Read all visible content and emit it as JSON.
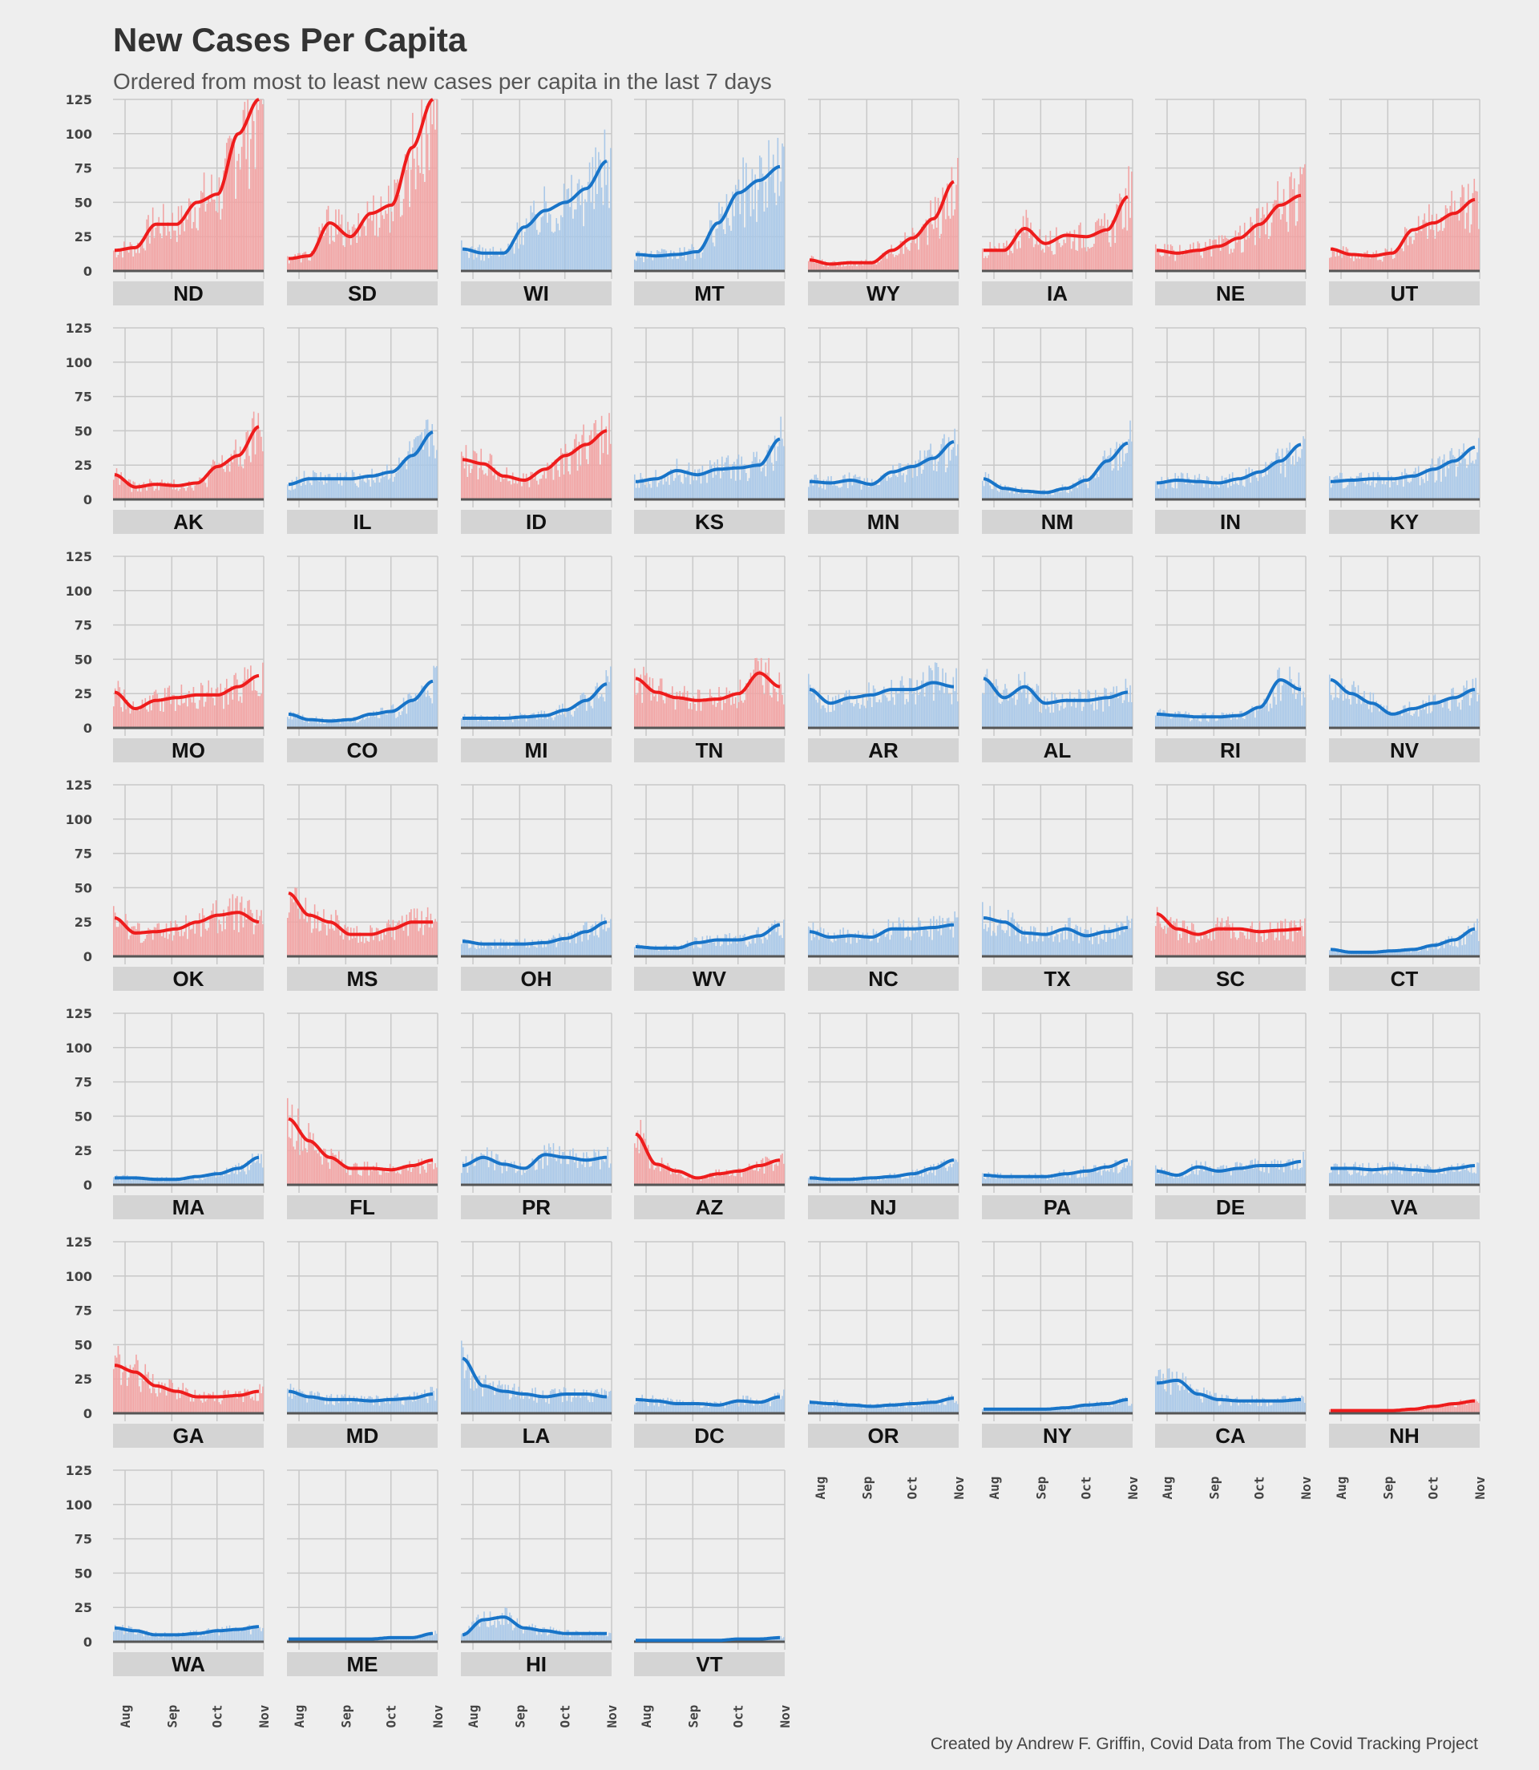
{
  "header": {
    "title": "New Cases Per Capita",
    "subtitle": "Ordered from most to least new cases per capita in the last 7 days"
  },
  "footer": {
    "caption": "Created by Andrew F. Griffin, Covid Data from The Covid Tracking Project"
  },
  "colors": {
    "background": "#eeeeee",
    "grid": "#c8c8c8",
    "strip": "#d4d4d4",
    "baseline": "#555555",
    "red_line": "#ee1c1c",
    "red_bar": "#f2a3a3",
    "blue_line": "#1874c8",
    "blue_bar": "#a9c8e8"
  },
  "chart_data": {
    "type": "line",
    "description_fields": {
      "y_ticks": [
        "0",
        "25",
        "50",
        "75",
        "100",
        "125"
      ],
      "x_ticks": [
        "Aug",
        "Sep",
        "Oct",
        "Nov"
      ]
    },
    "ylim": [
      0,
      125
    ],
    "x_range": [
      "2020-07-24",
      "2020-11-01"
    ],
    "x_ticks": [
      "Aug",
      "Sep",
      "Oct",
      "Nov"
    ],
    "y_ticks": [
      "0",
      "25",
      "50",
      "75",
      "100",
      "125"
    ],
    "grid": true,
    "series_shape": "7-day average line over daily bars",
    "facets": [
      {
        "state": "ND",
        "party": "red",
        "line": [
          15,
          17,
          34,
          34,
          50,
          56,
          100,
          125
        ]
      },
      {
        "state": "SD",
        "party": "red",
        "line": [
          9,
          11,
          35,
          25,
          42,
          48,
          90,
          125
        ]
      },
      {
        "state": "WI",
        "party": "blue",
        "line": [
          16,
          13,
          13,
          32,
          44,
          50,
          60,
          80
        ]
      },
      {
        "state": "MT",
        "party": "blue",
        "line": [
          12,
          11,
          12,
          14,
          35,
          57,
          66,
          76
        ]
      },
      {
        "state": "WY",
        "party": "red",
        "line": [
          8,
          5,
          6,
          6,
          15,
          24,
          38,
          65
        ]
      },
      {
        "state": "IA",
        "party": "red",
        "line": [
          15,
          15,
          31,
          20,
          26,
          25,
          30,
          54
        ]
      },
      {
        "state": "NE",
        "party": "red",
        "line": [
          15,
          13,
          15,
          18,
          24,
          34,
          48,
          55
        ]
      },
      {
        "state": "UT",
        "party": "red",
        "line": [
          16,
          12,
          11,
          13,
          30,
          35,
          42,
          52
        ]
      },
      {
        "state": "AK",
        "party": "red",
        "line": [
          18,
          9,
          11,
          10,
          12,
          24,
          32,
          53
        ]
      },
      {
        "state": "IL",
        "party": "blue",
        "line": [
          11,
          15,
          15,
          15,
          17,
          20,
          32,
          49
        ]
      },
      {
        "state": "ID",
        "party": "red",
        "line": [
          29,
          26,
          17,
          14,
          22,
          32,
          40,
          50
        ]
      },
      {
        "state": "KS",
        "party": "blue",
        "line": [
          13,
          15,
          21,
          18,
          22,
          23,
          25,
          44
        ]
      },
      {
        "state": "MN",
        "party": "blue",
        "line": [
          13,
          12,
          14,
          11,
          20,
          24,
          30,
          42
        ]
      },
      {
        "state": "NM",
        "party": "blue",
        "line": [
          15,
          8,
          6,
          5,
          8,
          14,
          28,
          41
        ]
      },
      {
        "state": "IN",
        "party": "blue",
        "line": [
          12,
          14,
          13,
          12,
          15,
          20,
          28,
          40
        ]
      },
      {
        "state": "KY",
        "party": "blue",
        "line": [
          13,
          14,
          15,
          15,
          17,
          22,
          28,
          38
        ]
      },
      {
        "state": "MO",
        "party": "red",
        "line": [
          26,
          14,
          20,
          22,
          24,
          24,
          30,
          38
        ]
      },
      {
        "state": "CO",
        "party": "blue",
        "line": [
          10,
          6,
          5,
          6,
          10,
          12,
          20,
          34
        ]
      },
      {
        "state": "MI",
        "party": "blue",
        "line": [
          7,
          7,
          7,
          8,
          9,
          13,
          20,
          32
        ]
      },
      {
        "state": "TN",
        "party": "red",
        "line": [
          36,
          26,
          22,
          20,
          21,
          25,
          40,
          30
        ]
      },
      {
        "state": "AR",
        "party": "blue",
        "line": [
          28,
          18,
          22,
          24,
          28,
          28,
          33,
          30
        ]
      },
      {
        "state": "AL",
        "party": "blue",
        "line": [
          36,
          22,
          30,
          18,
          20,
          20,
          22,
          26
        ]
      },
      {
        "state": "RI",
        "party": "blue",
        "line": [
          10,
          9,
          8,
          8,
          9,
          15,
          35,
          28
        ]
      },
      {
        "state": "NV",
        "party": "blue",
        "line": [
          35,
          25,
          18,
          10,
          14,
          18,
          22,
          28
        ]
      },
      {
        "state": "OK",
        "party": "red",
        "line": [
          28,
          17,
          18,
          20,
          25,
          30,
          32,
          25
        ]
      },
      {
        "state": "MS",
        "party": "red",
        "line": [
          46,
          30,
          25,
          16,
          16,
          20,
          25,
          25
        ]
      },
      {
        "state": "OH",
        "party": "blue",
        "line": [
          11,
          9,
          9,
          9,
          10,
          13,
          18,
          25
        ]
      },
      {
        "state": "WV",
        "party": "blue",
        "line": [
          7,
          6,
          6,
          10,
          12,
          12,
          15,
          23
        ]
      },
      {
        "state": "NC",
        "party": "blue",
        "line": [
          18,
          14,
          15,
          14,
          20,
          20,
          21,
          23
        ]
      },
      {
        "state": "TX",
        "party": "blue",
        "line": [
          28,
          25,
          17,
          16,
          20,
          15,
          18,
          21
        ]
      },
      {
        "state": "SC",
        "party": "red",
        "line": [
          31,
          20,
          16,
          20,
          20,
          18,
          19,
          20
        ]
      },
      {
        "state": "CT",
        "party": "blue",
        "line": [
          5,
          3,
          3,
          4,
          5,
          8,
          12,
          20
        ]
      },
      {
        "state": "MA",
        "party": "blue",
        "line": [
          5,
          5,
          4,
          4,
          6,
          8,
          12,
          20
        ]
      },
      {
        "state": "FL",
        "party": "red",
        "line": [
          48,
          32,
          20,
          12,
          12,
          11,
          14,
          18
        ]
      },
      {
        "state": "PR",
        "party": "blue",
        "line": [
          14,
          20,
          15,
          12,
          22,
          20,
          18,
          20
        ]
      },
      {
        "state": "AZ",
        "party": "red",
        "line": [
          37,
          15,
          10,
          5,
          8,
          10,
          14,
          18
        ]
      },
      {
        "state": "NJ",
        "party": "blue",
        "line": [
          5,
          4,
          4,
          5,
          6,
          8,
          12,
          18
        ]
      },
      {
        "state": "PA",
        "party": "blue",
        "line": [
          7,
          6,
          6,
          6,
          8,
          10,
          13,
          18
        ]
      },
      {
        "state": "DE",
        "party": "blue",
        "line": [
          10,
          7,
          13,
          10,
          12,
          14,
          14,
          17
        ]
      },
      {
        "state": "VA",
        "party": "blue",
        "line": [
          12,
          12,
          11,
          12,
          11,
          10,
          12,
          14
        ]
      },
      {
        "state": "GA",
        "party": "red",
        "line": [
          35,
          30,
          20,
          16,
          12,
          12,
          13,
          16
        ]
      },
      {
        "state": "MD",
        "party": "blue",
        "line": [
          16,
          12,
          10,
          10,
          9,
          10,
          11,
          14
        ]
      },
      {
        "state": "LA",
        "party": "blue",
        "line": [
          40,
          20,
          16,
          14,
          12,
          14,
          14,
          12
        ]
      },
      {
        "state": "DC",
        "party": "blue",
        "line": [
          10,
          9,
          7,
          7,
          6,
          9,
          8,
          12
        ]
      },
      {
        "state": "OR",
        "party": "blue",
        "line": [
          8,
          7,
          6,
          5,
          6,
          7,
          8,
          11
        ]
      },
      {
        "state": "NY",
        "party": "blue",
        "line": [
          3,
          3,
          3,
          3,
          4,
          6,
          7,
          10
        ]
      },
      {
        "state": "CA",
        "party": "blue",
        "line": [
          22,
          24,
          14,
          10,
          9,
          9,
          9,
          10
        ]
      },
      {
        "state": "NH",
        "party": "red",
        "line": [
          2,
          2,
          2,
          2,
          3,
          5,
          7,
          9
        ]
      },
      {
        "state": "WA",
        "party": "blue",
        "line": [
          10,
          8,
          5,
          5,
          6,
          8,
          9,
          11
        ]
      },
      {
        "state": "ME",
        "party": "blue",
        "line": [
          2,
          2,
          2,
          2,
          2,
          3,
          3,
          6
        ]
      },
      {
        "state": "HI",
        "party": "blue",
        "line": [
          5,
          16,
          18,
          10,
          8,
          6,
          6,
          6
        ]
      },
      {
        "state": "VT",
        "party": "blue",
        "line": [
          1,
          1,
          1,
          1,
          1,
          2,
          2,
          3
        ]
      }
    ]
  }
}
